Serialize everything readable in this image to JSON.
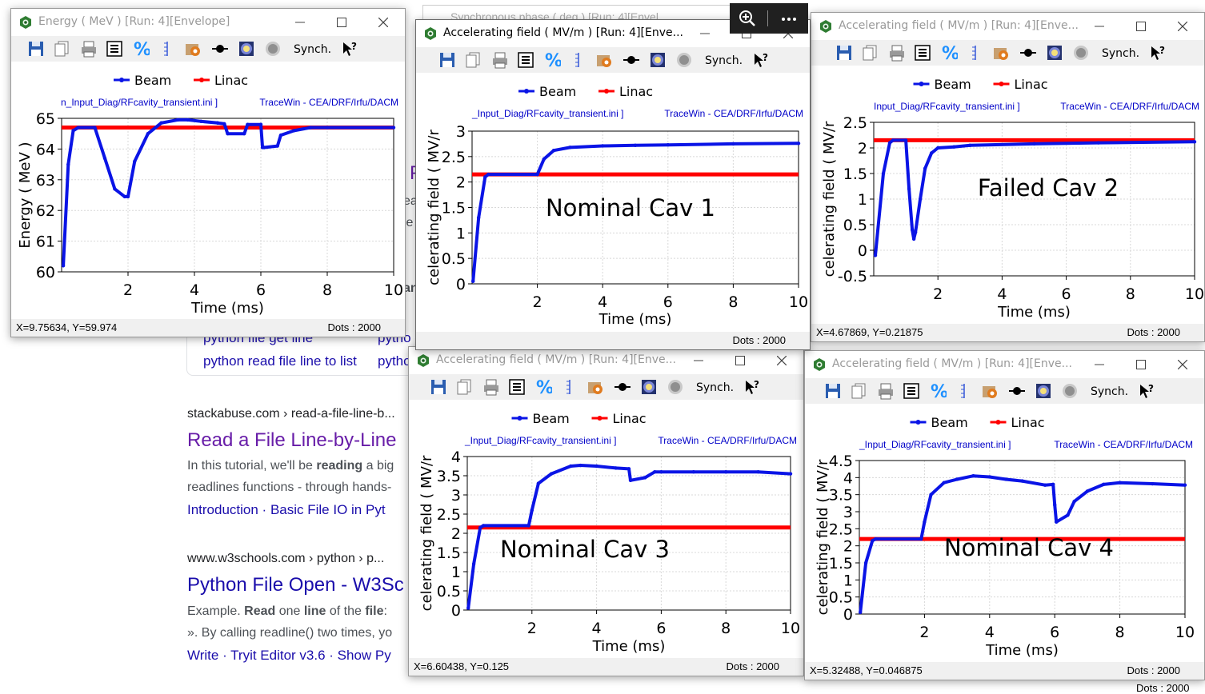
{
  "background": {
    "search_row1": "python file get line",
    "search_row1b": "pytho",
    "search_row2": "python read file line to list",
    "search_row2b": "pytho",
    "r1_site": "stackabuse.com › read-a-file-line-b...",
    "r1_title": "Read a File Line-by-Line",
    "r1_snip1_a": "In this tutorial, we'll be ",
    "r1_snip1_b": "reading",
    "r1_snip1_c": " a big",
    "r1_snip2_a": "readlines functions - through hands-",
    "r1_links": "Introduction · Basic File IO in Pyt",
    "r2_site": "www.w3schools.com › python › p...",
    "r2_title": "Python File Open - W3Sc",
    "r2_snip1_a": "Example. ",
    "r2_snip1_b": "Read",
    "r2_snip1_c": " one ",
    "r2_snip1_d": "line",
    "r2_snip1_e": " of the ",
    "r2_snip1_f": "file",
    "r2_snip1_g": ":",
    "r2_snip2": "». By calling readline() two times, yo",
    "r2_links": "Write · Tryit Editor v3.6 · Show Py",
    "partial_p": "P",
    "partial_e1": "ea",
    "partial_e2": "le",
    "partial_an": "an",
    "behind_title": "Synchronous phase ( deg ) [Run: 4][Envel",
    "dots_behind": "Dots : 2000",
    "colors": {
      "link": "#1a0dab",
      "visited": "#681da8",
      "url": "#202124",
      "snippet": "#4d5156",
      "lightlink": "#1a0dab"
    }
  },
  "overlay": {
    "zoom_icon": "magnifier-plus-icon",
    "more_icon": "more-dots-icon"
  },
  "toolbar": {
    "synch_label": "Synch."
  },
  "legend": {
    "beam": "Beam",
    "linac": "Linac"
  },
  "colors": {
    "beam": "#0a14e6",
    "linac": "#ff0000",
    "subtitle": "#0000c8"
  },
  "windows": [
    {
      "id": "energy",
      "title": "Energy ( MeV ) [Run: 4][Envelope]",
      "subtitle_left": "n_Input_Diag/RFcavity_transient.ini ]",
      "subtitle_right": "TraceWin - CEA/DRF/Irfu/DACM",
      "status_coords": "X=9.75634, Y=59.974",
      "status_dots": "Dots : 2000",
      "annotation": "",
      "active": false
    },
    {
      "id": "cav1",
      "title": "Accelerating field ( MV/m ) [Run: 4][Enve...",
      "subtitle_left": "_Input_Diag/RFcavity_transient.ini ]",
      "subtitle_right": "TraceWin - CEA/DRF/Irfu/DACM",
      "status_coords": "",
      "status_dots": "Dots : 2000",
      "annotation": "Nominal Cav 1",
      "active": true
    },
    {
      "id": "cav2",
      "title": "Accelerating field ( MV/m ) [Run: 4][Enve...",
      "subtitle_left": "Input_Diag/RFcavity_transient.ini ]",
      "subtitle_right": "TraceWin - CEA/DRF/Irfu/DACM",
      "status_coords": "X=4.67869, Y=0.21875",
      "status_dots": "Dots : 2000",
      "annotation": "Failed Cav 2",
      "active": false
    },
    {
      "id": "cav3",
      "title": "Accelerating field ( MV/m ) [Run: 4][Enve...",
      "subtitle_left": "_Input_Diag/RFcavity_transient.ini ]",
      "subtitle_right": "TraceWin - CEA/DRF/Irfu/DACM",
      "status_coords": "X=6.60438, Y=0.125",
      "status_dots": "Dots : 2000",
      "annotation": "Nominal Cav 3",
      "active": false
    },
    {
      "id": "cav4",
      "title": "Accelerating field ( MV/m ) [Run: 4][Enve...",
      "subtitle_left": "_Input_Diag/RFcavity_transient.ini ]",
      "subtitle_right": "TraceWin - CEA/DRF/Irfu/DACM",
      "status_coords": "X=5.32488, Y=0.046875",
      "status_dots": "Dots : 2000",
      "annotation": "Nominal Cav 4",
      "active": false
    }
  ],
  "chart_data": [
    {
      "type": "line",
      "xlabel": "Time (ms)",
      "ylabel": "Energy ( MeV )",
      "xlim": [
        0,
        10
      ],
      "ylim": [
        60,
        65
      ],
      "xticks": [
        2,
        4,
        6,
        8,
        10
      ],
      "yticks": [
        60,
        61,
        62,
        63,
        64,
        65
      ],
      "linac": 64.7,
      "series": [
        {
          "name": "Beam",
          "x": [
            0.05,
            0.2,
            0.35,
            0.5,
            1.0,
            1.3,
            1.6,
            1.9,
            2.0,
            2.2,
            2.6,
            3.0,
            3.5,
            3.8,
            4.2,
            4.7,
            4.9,
            5.0,
            5.5,
            5.6,
            6.0,
            6.05,
            6.1,
            6.5,
            6.6,
            7.0,
            7.5,
            8.0,
            10.0
          ],
          "y": [
            60.2,
            63.5,
            64.6,
            64.7,
            64.7,
            63.7,
            62.7,
            62.45,
            62.45,
            63.6,
            64.5,
            64.85,
            64.95,
            64.95,
            64.9,
            64.85,
            64.82,
            64.5,
            64.5,
            64.8,
            64.8,
            64.05,
            64.05,
            64.1,
            64.45,
            64.6,
            64.7,
            64.7,
            64.7
          ]
        }
      ]
    },
    {
      "type": "line",
      "xlabel": "Time (ms)",
      "ylabel": "celerating field ( MV/r",
      "xlim": [
        0,
        10
      ],
      "ylim": [
        0,
        3
      ],
      "xticks": [
        2,
        4,
        6,
        8,
        10
      ],
      "yticks": [
        0,
        0.5,
        1,
        1.5,
        2,
        2.5,
        3
      ],
      "ytick_labels": [
        "0",
        "0.5",
        "1",
        "1.5",
        "2",
        "2.5",
        "3"
      ],
      "linac": 2.15,
      "series": [
        {
          "name": "Beam",
          "x": [
            0.03,
            0.2,
            0.4,
            0.5,
            2.0,
            2.2,
            2.5,
            3.0,
            4.0,
            5.0,
            6.0,
            8.0,
            10.0
          ],
          "y": [
            0.05,
            1.3,
            2.1,
            2.15,
            2.15,
            2.45,
            2.62,
            2.68,
            2.71,
            2.72,
            2.73,
            2.75,
            2.76
          ]
        }
      ]
    },
    {
      "type": "line",
      "xlabel": "Time (ms)",
      "ylabel": "celerating field ( MV/r",
      "xlim": [
        0,
        10
      ],
      "ylim": [
        -0.5,
        2.5
      ],
      "xticks": [
        2,
        4,
        6,
        8,
        10
      ],
      "yticks": [
        -0.5,
        0,
        0.5,
        1,
        1.5,
        2,
        2.5
      ],
      "ytick_labels": [
        "-0.5",
        "0",
        "0.5",
        "1",
        "1.5",
        "2",
        "2.5"
      ],
      "linac": 2.15,
      "series": [
        {
          "name": "Beam",
          "x": [
            0.05,
            0.3,
            0.5,
            0.6,
            1.0,
            1.1,
            1.2,
            1.25,
            1.3,
            1.45,
            1.6,
            1.8,
            2.0,
            2.5,
            3.0,
            5.0,
            7.0,
            10.0
          ],
          "y": [
            -0.1,
            1.5,
            2.1,
            2.15,
            2.15,
            1.2,
            0.4,
            0.22,
            0.35,
            1.0,
            1.6,
            1.9,
            2.0,
            2.02,
            2.05,
            2.08,
            2.1,
            2.12
          ]
        }
      ]
    },
    {
      "type": "line",
      "xlabel": "Time (ms)",
      "ylabel": "celerating field ( MV/r",
      "xlim": [
        0,
        10
      ],
      "ylim": [
        0,
        4
      ],
      "xticks": [
        2,
        4,
        6,
        8,
        10
      ],
      "yticks": [
        0,
        0.5,
        1,
        1.5,
        2,
        2.5,
        3,
        3.5,
        4
      ],
      "ytick_labels": [
        "0",
        "0.5",
        "1",
        "1.5",
        "2",
        "2.5",
        "3",
        "3.5",
        "4"
      ],
      "linac": 2.15,
      "series": [
        {
          "name": "Beam",
          "x": [
            0.03,
            0.2,
            0.4,
            0.5,
            1.9,
            2.0,
            2.2,
            2.6,
            3.2,
            3.5,
            4.0,
            4.6,
            5.0,
            5.05,
            5.5,
            5.8,
            6.0,
            7.0,
            8.0,
            9.0,
            10.0
          ],
          "y": [
            0.05,
            1.2,
            2.15,
            2.2,
            2.2,
            2.6,
            3.3,
            3.55,
            3.75,
            3.77,
            3.75,
            3.7,
            3.68,
            3.38,
            3.45,
            3.6,
            3.6,
            3.6,
            3.6,
            3.6,
            3.55
          ]
        }
      ]
    },
    {
      "type": "line",
      "xlabel": "Time (ms)",
      "ylabel": "celerating field ( MV/r",
      "xlim": [
        0,
        10
      ],
      "ylim": [
        0,
        4.5
      ],
      "xticks": [
        2,
        4,
        6,
        8,
        10
      ],
      "yticks": [
        0,
        0.5,
        1,
        1.5,
        2,
        2.5,
        3,
        3.5,
        4,
        4.5
      ],
      "ytick_labels": [
        "0",
        "0.5",
        "1",
        "1.5",
        "2",
        "2.5",
        "3",
        "3.5",
        "4",
        "4.5"
      ],
      "linac": 2.2,
      "series": [
        {
          "name": "Beam",
          "x": [
            0.03,
            0.2,
            0.4,
            0.5,
            1.9,
            2.0,
            2.2,
            2.6,
            3.0,
            3.5,
            4.0,
            4.5,
            5.0,
            5.7,
            5.95,
            6.0,
            6.05,
            6.4,
            6.6,
            7.0,
            7.5,
            8.0,
            9.0,
            10.0
          ],
          "y": [
            0.05,
            1.5,
            2.15,
            2.2,
            2.2,
            2.7,
            3.5,
            3.85,
            3.95,
            4.05,
            4.02,
            3.95,
            3.9,
            3.78,
            3.8,
            3.2,
            2.7,
            2.9,
            3.3,
            3.6,
            3.8,
            3.85,
            3.82,
            3.78
          ]
        }
      ]
    }
  ]
}
